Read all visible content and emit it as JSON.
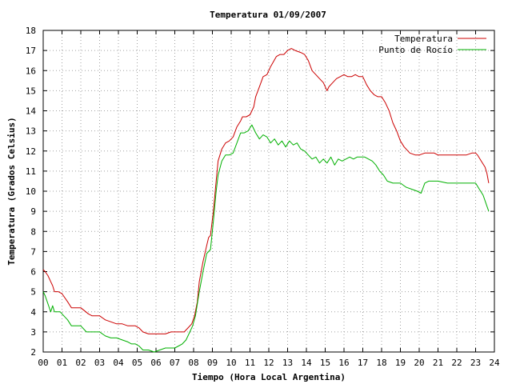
{
  "chart_data": {
    "type": "line",
    "title": "Temperatura 01/09/2007",
    "xlabel": "Tiempo (Hora Local Argentina)",
    "ylabel": "Temperatura (Grados Celsius)",
    "xlim": [
      0,
      24
    ],
    "ylim": [
      2,
      18
    ],
    "x_ticks": [
      "00",
      "01",
      "02",
      "03",
      "04",
      "05",
      "06",
      "07",
      "08",
      "09",
      "10",
      "11",
      "12",
      "13",
      "14",
      "15",
      "16",
      "17",
      "18",
      "19",
      "20",
      "21",
      "22",
      "23",
      "24"
    ],
    "y_ticks": [
      "2",
      "3",
      "4",
      "5",
      "6",
      "7",
      "8",
      "9",
      "10",
      "11",
      "12",
      "13",
      "14",
      "15",
      "16",
      "17",
      "18"
    ],
    "grid": true,
    "legend_position": "top-right",
    "series": [
      {
        "name": "Temperatura",
        "color": "#cc0000",
        "x": [
          0.0,
          0.1,
          0.25,
          0.4,
          0.5,
          0.6,
          0.8,
          1.0,
          1.3,
          1.5,
          2.0,
          2.4,
          2.6,
          3.0,
          3.3,
          3.6,
          3.9,
          4.2,
          4.5,
          4.7,
          4.9,
          5.1,
          5.3,
          5.6,
          5.9,
          6.2,
          6.5,
          6.8,
          7.0,
          7.3,
          7.5,
          7.7,
          7.9,
          8.05,
          8.2,
          8.3,
          8.5,
          8.7,
          8.8,
          8.9,
          9.05,
          9.2,
          9.3,
          9.5,
          9.7,
          9.9,
          10.1,
          10.3,
          10.5,
          10.6,
          10.8,
          11.0,
          11.2,
          11.3,
          11.5,
          11.7,
          11.9,
          12.1,
          12.4,
          12.6,
          12.8,
          13.0,
          13.2,
          13.4,
          13.7,
          13.9,
          14.1,
          14.3,
          14.5,
          14.7,
          14.9,
          15.1,
          15.2,
          15.4,
          15.6,
          15.8,
          16.0,
          16.2,
          16.4,
          16.6,
          16.8,
          17.0,
          17.2,
          17.4,
          17.6,
          17.8,
          18.0,
          18.2,
          18.4,
          18.6,
          18.8,
          19.0,
          19.2,
          19.5,
          19.8,
          20.0,
          20.3,
          20.5,
          20.8,
          21.0,
          21.3,
          21.5,
          22.0,
          22.5,
          22.8,
          23.0,
          23.1,
          23.3,
          23.5,
          23.6,
          23.7
        ],
        "values": [
          6.1,
          6.0,
          5.8,
          5.5,
          5.3,
          5.0,
          5.0,
          4.9,
          4.5,
          4.2,
          4.2,
          3.9,
          3.8,
          3.8,
          3.6,
          3.5,
          3.4,
          3.4,
          3.3,
          3.3,
          3.3,
          3.2,
          3.0,
          2.9,
          2.9,
          2.9,
          2.9,
          3.0,
          3.0,
          3.0,
          3.0,
          3.2,
          3.4,
          3.8,
          4.5,
          5.5,
          6.5,
          7.3,
          7.7,
          7.8,
          9.0,
          10.5,
          11.5,
          12.1,
          12.4,
          12.5,
          12.7,
          13.2,
          13.5,
          13.7,
          13.7,
          13.8,
          14.2,
          14.7,
          15.2,
          15.7,
          15.8,
          16.2,
          16.7,
          16.8,
          16.8,
          17.0,
          17.1,
          17.0,
          16.9,
          16.8,
          16.5,
          16.0,
          15.8,
          15.6,
          15.4,
          15.0,
          15.2,
          15.4,
          15.6,
          15.7,
          15.8,
          15.7,
          15.7,
          15.8,
          15.7,
          15.7,
          15.3,
          15.0,
          14.8,
          14.7,
          14.7,
          14.4,
          14.0,
          13.4,
          13.0,
          12.5,
          12.2,
          11.9,
          11.8,
          11.8,
          11.9,
          11.9,
          11.9,
          11.8,
          11.8,
          11.8,
          11.8,
          11.8,
          11.9,
          11.9,
          11.8,
          11.5,
          11.2,
          10.9,
          10.4
        ]
      },
      {
        "name": "Punto de Rocío",
        "color": "#00b000",
        "x": [
          0.0,
          0.1,
          0.25,
          0.4,
          0.5,
          0.6,
          0.9,
          1.1,
          1.3,
          1.5,
          2.0,
          2.3,
          2.6,
          3.0,
          3.3,
          3.6,
          3.9,
          4.2,
          4.5,
          4.7,
          4.9,
          5.1,
          5.3,
          5.6,
          5.9,
          6.2,
          6.5,
          6.8,
          7.0,
          7.2,
          7.4,
          7.6,
          7.8,
          7.95,
          8.1,
          8.3,
          8.5,
          8.7,
          8.8,
          8.9,
          9.05,
          9.2,
          9.3,
          9.5,
          9.7,
          9.9,
          10.1,
          10.3,
          10.5,
          10.7,
          10.9,
          11.1,
          11.3,
          11.5,
          11.7,
          11.9,
          12.1,
          12.3,
          12.5,
          12.7,
          12.9,
          13.1,
          13.3,
          13.5,
          13.7,
          13.9,
          14.1,
          14.3,
          14.5,
          14.7,
          14.9,
          15.1,
          15.3,
          15.5,
          15.7,
          15.9,
          16.1,
          16.3,
          16.5,
          16.7,
          16.9,
          17.1,
          17.3,
          17.5,
          17.7,
          17.9,
          18.1,
          18.3,
          18.6,
          18.8,
          19.0,
          19.3,
          19.6,
          19.9,
          20.1,
          20.3,
          20.5,
          21.0,
          21.5,
          22.0,
          22.5,
          22.8,
          23.0,
          23.2,
          23.4,
          23.55,
          23.7
        ],
        "values": [
          5.0,
          4.8,
          4.4,
          4.0,
          4.3,
          4.0,
          4.0,
          3.8,
          3.6,
          3.3,
          3.3,
          3.0,
          3.0,
          3.0,
          2.8,
          2.7,
          2.7,
          2.6,
          2.5,
          2.4,
          2.4,
          2.3,
          2.1,
          2.1,
          2.0,
          2.1,
          2.2,
          2.2,
          2.2,
          2.3,
          2.4,
          2.6,
          3.0,
          3.3,
          3.8,
          5.0,
          6.0,
          6.9,
          7.0,
          7.1,
          8.5,
          10.0,
          10.8,
          11.5,
          11.8,
          11.8,
          11.9,
          12.4,
          12.9,
          12.9,
          13.0,
          13.3,
          12.9,
          12.6,
          12.8,
          12.7,
          12.4,
          12.6,
          12.3,
          12.5,
          12.2,
          12.5,
          12.3,
          12.4,
          12.1,
          12.0,
          11.8,
          11.6,
          11.7,
          11.4,
          11.6,
          11.4,
          11.7,
          11.3,
          11.6,
          11.5,
          11.6,
          11.7,
          11.6,
          11.7,
          11.7,
          11.7,
          11.6,
          11.5,
          11.3,
          11.0,
          10.8,
          10.5,
          10.4,
          10.4,
          10.4,
          10.2,
          10.1,
          10.0,
          9.9,
          10.4,
          10.5,
          10.5,
          10.4,
          10.4,
          10.4,
          10.4,
          10.4,
          10.1,
          9.8,
          9.4,
          9.0
        ]
      }
    ]
  }
}
